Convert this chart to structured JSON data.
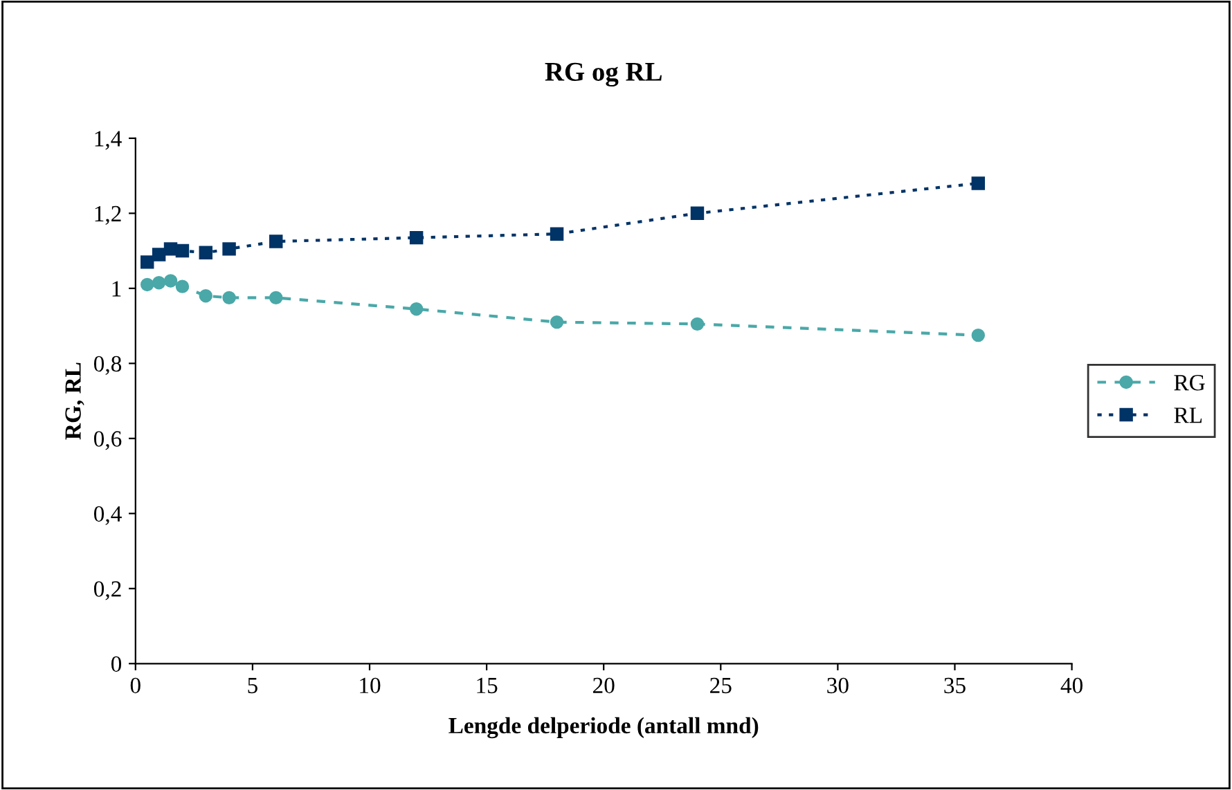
{
  "chart_data": {
    "type": "line",
    "title": "RG og RL",
    "xlabel": "Lengde delperiode (antall mnd)",
    "ylabel": "RG, RL",
    "x": [
      0.5,
      1,
      1.5,
      2,
      3,
      4,
      6,
      12,
      18,
      24,
      36
    ],
    "series": [
      {
        "name": "RG",
        "color": "#4aa8a8",
        "marker": "circle",
        "line_style": "dashed",
        "values": [
          1.01,
          1.015,
          1.02,
          1.005,
          0.98,
          0.975,
          0.975,
          0.945,
          0.91,
          0.905,
          0.875
        ]
      },
      {
        "name": "RL",
        "color": "#003366",
        "marker": "square",
        "line_style": "dotted",
        "values": [
          1.07,
          1.09,
          1.105,
          1.1,
          1.095,
          1.105,
          1.125,
          1.135,
          1.145,
          1.2,
          1.28
        ]
      }
    ],
    "xlim": [
      0,
      40
    ],
    "xticks": [
      0,
      5,
      10,
      15,
      20,
      25,
      30,
      35,
      40
    ],
    "ylim": [
      0,
      1.4
    ],
    "yticks": [
      {
        "value": 0,
        "label": "0"
      },
      {
        "value": 0.2,
        "label": "0,2"
      },
      {
        "value": 0.4,
        "label": "0,4"
      },
      {
        "value": 0.6,
        "label": "0,6"
      },
      {
        "value": 0.8,
        "label": "0,8"
      },
      {
        "value": 1,
        "label": "1"
      },
      {
        "value": 1.2,
        "label": "1,2"
      },
      {
        "value": 1.4,
        "label": "1,4"
      }
    ],
    "grid": false,
    "legend": "right"
  }
}
